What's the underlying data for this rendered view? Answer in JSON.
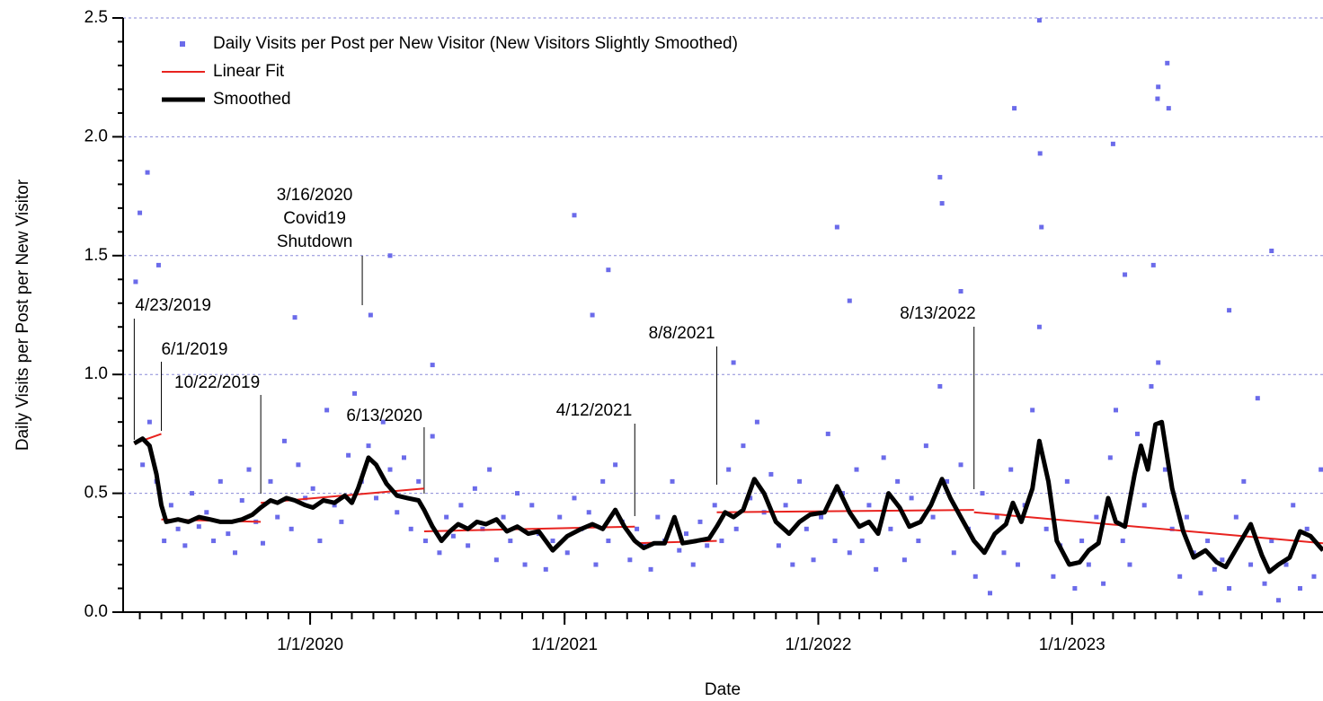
{
  "chart_data": {
    "type": "scatter",
    "x_label": "Date",
    "y_label": "Daily Visits per Post per New Visitor",
    "xlim": [
      "2019-04-07",
      "2023-12-28"
    ],
    "ylim": [
      0,
      2.5
    ],
    "xticks": [
      {
        "value": "2020-01-01",
        "label": "1/1/2020"
      },
      {
        "value": "2021-01-01",
        "label": "1/1/2021"
      },
      {
        "value": "2022-01-01",
        "label": "1/1/2022"
      },
      {
        "value": "2023-01-01",
        "label": "1/1/2023"
      }
    ],
    "yticks": [
      {
        "value": 0,
        "label": "0.0"
      },
      0.5,
      {
        "value": 1,
        "label": "1.0"
      },
      1.5,
      {
        "value": 2,
        "label": "2.0"
      },
      2.5
    ],
    "grid": true,
    "legend": "upper left",
    "series": [
      {
        "name": "Daily Visits per Post per New Visitor (New Visitors Slightly Smoothed)",
        "type": "scatter",
        "color": "#6b6bea",
        "x": [
          "2019-04-25",
          "2019-05-01",
          "2019-05-12",
          "2019-05-28",
          "2019-12-10",
          "2020-03-28",
          "2020-04-25",
          "2020-06-25",
          "2021-01-15",
          "2021-02-10",
          "2021-03-05",
          "2021-09-01",
          "2022-01-28",
          "2022-02-15",
          "2022-06-25",
          "2022-06-28",
          "2022-07-25",
          "2022-10-10",
          "2022-11-15",
          "2022-11-16",
          "2022-11-18",
          "2023-03-01",
          "2023-03-18",
          "2023-04-28",
          "2023-05-04",
          "2023-05-05",
          "2023-05-18",
          "2023-05-20",
          "2023-08-15",
          "2023-10-15",
          "2019-05-05",
          "2019-05-15",
          "2019-05-25",
          "2019-06-05",
          "2019-06-15",
          "2019-06-25",
          "2019-07-05",
          "2019-07-15",
          "2019-07-25",
          "2019-08-05",
          "2019-08-15",
          "2019-08-25",
          "2019-09-05",
          "2019-09-15",
          "2019-09-25",
          "2019-10-05",
          "2019-10-15",
          "2019-10-25",
          "2019-11-05",
          "2019-11-15",
          "2019-11-25",
          "2019-12-05",
          "2019-12-15",
          "2019-12-25",
          "2020-01-05",
          "2020-01-15",
          "2020-01-25",
          "2020-02-05",
          "2020-02-15",
          "2020-02-25",
          "2020-03-05",
          "2020-03-15",
          "2020-03-25",
          "2020-04-05",
          "2020-04-15",
          "2020-04-25",
          "2020-05-05",
          "2020-05-15",
          "2020-05-25",
          "2020-06-05",
          "2020-06-15",
          "2020-06-25",
          "2020-07-05",
          "2020-07-15",
          "2020-07-25",
          "2020-08-05",
          "2020-08-15",
          "2020-08-25",
          "2020-09-05",
          "2020-09-15",
          "2020-09-25",
          "2020-10-05",
          "2020-10-15",
          "2020-10-25",
          "2020-11-05",
          "2020-11-15",
          "2020-11-25",
          "2020-12-05",
          "2020-12-15",
          "2020-12-25",
          "2021-01-05",
          "2021-01-15",
          "2021-01-25",
          "2021-02-05",
          "2021-02-15",
          "2021-02-25",
          "2021-03-05",
          "2021-03-15",
          "2021-03-25",
          "2021-04-05",
          "2021-04-15",
          "2021-04-25",
          "2021-05-05",
          "2021-05-15",
          "2021-05-25",
          "2021-06-05",
          "2021-06-15",
          "2021-06-25",
          "2021-07-05",
          "2021-07-15",
          "2021-07-25",
          "2021-08-05",
          "2021-08-15",
          "2021-08-25",
          "2021-09-05",
          "2021-09-15",
          "2021-09-25",
          "2021-10-05",
          "2021-10-15",
          "2021-10-25",
          "2021-11-05",
          "2021-11-15",
          "2021-11-25",
          "2021-12-05",
          "2021-12-15",
          "2021-12-25",
          "2022-01-05",
          "2022-01-15",
          "2022-01-25",
          "2022-02-05",
          "2022-02-15",
          "2022-02-25",
          "2022-03-05",
          "2022-03-15",
          "2022-03-25",
          "2022-04-05",
          "2022-04-15",
          "2022-04-25",
          "2022-05-05",
          "2022-05-15",
          "2022-05-25",
          "2022-06-05",
          "2022-06-15",
          "2022-06-25",
          "2022-07-05",
          "2022-07-15",
          "2022-07-25",
          "2022-08-05",
          "2022-08-15",
          "2022-08-25",
          "2022-09-05",
          "2022-09-15",
          "2022-09-25",
          "2022-10-05",
          "2022-10-15",
          "2022-10-25",
          "2022-11-05",
          "2022-11-15",
          "2022-11-25",
          "2022-12-05",
          "2022-12-15",
          "2022-12-25",
          "2023-01-05",
          "2023-01-15",
          "2023-01-25",
          "2023-02-05",
          "2023-02-15",
          "2023-02-25",
          "2023-03-05",
          "2023-03-15",
          "2023-03-25",
          "2023-04-05",
          "2023-04-15",
          "2023-04-25",
          "2023-05-05",
          "2023-05-15",
          "2023-05-25",
          "2023-06-05",
          "2023-06-15",
          "2023-06-25",
          "2023-07-05",
          "2023-07-15",
          "2023-07-25",
          "2023-08-05",
          "2023-08-15",
          "2023-08-25",
          "2023-09-05",
          "2023-09-15",
          "2023-09-25",
          "2023-10-05",
          "2023-10-15",
          "2023-10-25",
          "2023-11-05",
          "2023-11-15",
          "2023-11-25",
          "2023-12-05",
          "2023-12-15",
          "2023-12-25"
        ],
        "values": [
          1.39,
          1.68,
          1.85,
          1.46,
          1.24,
          1.25,
          1.5,
          1.04,
          1.67,
          1.25,
          1.44,
          1.05,
          1.62,
          1.31,
          1.83,
          1.72,
          1.35,
          2.12,
          2.49,
          1.93,
          1.62,
          1.97,
          1.42,
          1.46,
          2.16,
          2.21,
          2.31,
          2.12,
          1.27,
          1.52,
          0.62,
          0.8,
          0.55,
          0.3,
          0.45,
          0.35,
          0.28,
          0.5,
          0.36,
          0.42,
          0.3,
          0.55,
          0.33,
          0.25,
          0.47,
          0.6,
          0.38,
          0.29,
          0.55,
          0.4,
          0.72,
          0.35,
          0.62,
          0.48,
          0.52,
          0.3,
          0.85,
          0.45,
          0.38,
          0.66,
          0.92,
          0.55,
          0.7,
          0.48,
          0.8,
          0.6,
          0.42,
          0.65,
          0.35,
          0.55,
          0.3,
          0.74,
          0.25,
          0.4,
          0.32,
          0.45,
          0.28,
          0.52,
          0.35,
          0.6,
          0.22,
          0.4,
          0.3,
          0.5,
          0.2,
          0.45,
          0.33,
          0.18,
          0.3,
          0.4,
          0.25,
          0.48,
          0.35,
          0.42,
          0.2,
          0.55,
          0.3,
          0.62,
          0.38,
          0.22,
          0.35,
          0.28,
          0.18,
          0.4,
          0.3,
          0.55,
          0.26,
          0.33,
          0.2,
          0.38,
          0.28,
          0.45,
          0.3,
          0.6,
          0.35,
          0.7,
          0.48,
          0.8,
          0.42,
          0.58,
          0.28,
          0.45,
          0.2,
          0.55,
          0.35,
          0.22,
          0.4,
          0.75,
          0.3,
          0.5,
          0.25,
          0.6,
          0.3,
          0.45,
          0.18,
          0.65,
          0.35,
          0.55,
          0.22,
          0.48,
          0.3,
          0.7,
          0.4,
          0.95,
          0.55,
          0.25,
          0.62,
          0.35,
          0.15,
          0.5,
          0.08,
          0.4,
          0.25,
          0.6,
          0.2,
          0.45,
          0.85,
          1.2,
          0.35,
          0.15,
          0.28,
          0.55,
          0.1,
          0.3,
          0.2,
          0.4,
          0.12,
          0.65,
          0.85,
          0.3,
          0.2,
          0.75,
          0.45,
          0.95,
          1.05,
          0.6,
          0.35,
          0.15,
          0.4,
          0.25,
          0.08,
          0.3,
          0.18,
          0.22,
          0.1,
          0.4,
          0.55,
          0.2,
          0.9,
          0.12,
          0.3,
          0.05,
          0.2,
          0.45,
          0.1,
          0.35,
          0.15,
          0.6
        ]
      },
      {
        "name": "Linear Fit",
        "type": "line",
        "color": "#e8231f",
        "x": [
          "2019-04-23",
          "2019-06-01",
          "2019-06-01",
          "2019-06-01",
          "2019-10-22",
          "2019-10-22",
          "2019-10-22",
          "2020-06-13",
          "2020-06-13",
          "2020-06-13",
          "2021-04-12",
          "2021-04-12",
          "2021-04-12",
          "2021-08-08",
          "2021-08-08",
          "2021-08-08",
          "2022-08-13",
          "2022-08-13",
          "2022-08-13",
          "2023-12-28"
        ],
        "values": [
          0.71,
          0.75,
          null,
          0.39,
          0.38,
          null,
          0.46,
          0.52,
          null,
          0.34,
          0.36,
          null,
          0.29,
          0.3,
          null,
          0.42,
          0.43,
          null,
          0.42,
          0.29
        ]
      },
      {
        "name": "Smoothed",
        "type": "line",
        "color": "#000000",
        "x": [
          "2019-04-23",
          "2019-05-05",
          "2019-05-15",
          "2019-05-25",
          "2019-06-01",
          "2019-06-08",
          "2019-06-25",
          "2019-07-10",
          "2019-07-25",
          "2019-08-10",
          "2019-08-25",
          "2019-09-10",
          "2019-09-25",
          "2019-10-10",
          "2019-10-22",
          "2019-11-05",
          "2019-11-15",
          "2019-11-28",
          "2019-12-10",
          "2019-12-25",
          "2020-01-05",
          "2020-01-20",
          "2020-02-05",
          "2020-02-20",
          "2020-03-01",
          "2020-03-10",
          "2020-03-25",
          "2020-04-05",
          "2020-04-20",
          "2020-05-05",
          "2020-05-20",
          "2020-06-05",
          "2020-06-13",
          "2020-06-25",
          "2020-07-08",
          "2020-07-20",
          "2020-08-01",
          "2020-08-15",
          "2020-08-28",
          "2020-09-10",
          "2020-09-25",
          "2020-10-10",
          "2020-10-25",
          "2020-11-10",
          "2020-11-25",
          "2020-12-15",
          "2021-01-05",
          "2021-01-25",
          "2021-02-10",
          "2021-02-25",
          "2021-03-15",
          "2021-03-28",
          "2021-04-12",
          "2021-04-25",
          "2021-05-10",
          "2021-05-25",
          "2021-06-08",
          "2021-06-20",
          "2021-07-10",
          "2021-07-28",
          "2021-08-08",
          "2021-08-20",
          "2021-09-01",
          "2021-09-15",
          "2021-10-01",
          "2021-10-15",
          "2021-11-01",
          "2021-11-20",
          "2021-12-05",
          "2021-12-20",
          "2022-01-10",
          "2022-01-28",
          "2022-02-15",
          "2022-03-01",
          "2022-03-15",
          "2022-03-28",
          "2022-04-12",
          "2022-04-28",
          "2022-05-12",
          "2022-05-28",
          "2022-06-12",
          "2022-06-28",
          "2022-07-10",
          "2022-07-25",
          "2022-08-13",
          "2022-08-28",
          "2022-09-12",
          "2022-09-28",
          "2022-10-08",
          "2022-10-20",
          "2022-11-05",
          "2022-11-15",
          "2022-11-28",
          "2022-12-10",
          "2022-12-28",
          "2023-01-12",
          "2023-01-25",
          "2023-02-08",
          "2023-02-22",
          "2023-03-05",
          "2023-03-18",
          "2023-04-01",
          "2023-04-10",
          "2023-04-20",
          "2023-05-01",
          "2023-05-10",
          "2023-05-25",
          "2023-06-10",
          "2023-06-25",
          "2023-07-12",
          "2023-07-28",
          "2023-08-10",
          "2023-08-28",
          "2023-09-15",
          "2023-10-01",
          "2023-10-12",
          "2023-10-25",
          "2023-11-10",
          "2023-11-25",
          "2023-12-10",
          "2023-12-28"
        ],
        "values": [
          0.71,
          0.73,
          0.7,
          0.58,
          0.45,
          0.38,
          0.39,
          0.38,
          0.4,
          0.39,
          0.38,
          0.38,
          0.39,
          0.41,
          0.44,
          0.47,
          0.46,
          0.48,
          0.47,
          0.45,
          0.44,
          0.47,
          0.46,
          0.49,
          0.46,
          0.52,
          0.65,
          0.62,
          0.54,
          0.49,
          0.48,
          0.47,
          0.43,
          0.36,
          0.3,
          0.34,
          0.37,
          0.35,
          0.38,
          0.37,
          0.39,
          0.34,
          0.36,
          0.33,
          0.34,
          0.26,
          0.32,
          0.35,
          0.37,
          0.35,
          0.43,
          0.36,
          0.3,
          0.27,
          0.29,
          0.29,
          0.4,
          0.29,
          0.3,
          0.31,
          0.36,
          0.42,
          0.4,
          0.43,
          0.56,
          0.5,
          0.38,
          0.33,
          0.38,
          0.41,
          0.42,
          0.53,
          0.42,
          0.36,
          0.38,
          0.33,
          0.5,
          0.44,
          0.36,
          0.38,
          0.45,
          0.56,
          0.48,
          0.4,
          0.3,
          0.25,
          0.33,
          0.37,
          0.46,
          0.38,
          0.52,
          0.72,
          0.55,
          0.3,
          0.2,
          0.21,
          0.26,
          0.29,
          0.48,
          0.38,
          0.36,
          0.58,
          0.7,
          0.6,
          0.79,
          0.8,
          0.52,
          0.34,
          0.23,
          0.26,
          0.21,
          0.19,
          0.28,
          0.37,
          0.24,
          0.17,
          0.2,
          0.23,
          0.34,
          0.32,
          0.26
        ]
      }
    ],
    "annotations": [
      {
        "x": "2019-04-23",
        "label": [
          "4/23/2019"
        ]
      },
      {
        "x": "2019-06-01",
        "label": [
          "6/1/2019"
        ]
      },
      {
        "x": "2019-10-22",
        "label": [
          "10/22/2019"
        ]
      },
      {
        "x": "2020-03-16",
        "label": [
          "3/16/2020",
          "Covid19",
          "Shutdown"
        ]
      },
      {
        "x": "2020-06-13",
        "label": [
          "6/13/2020"
        ]
      },
      {
        "x": "2021-04-12",
        "label": [
          "4/12/2021"
        ]
      },
      {
        "x": "2021-08-08",
        "label": [
          "8/8/2021"
        ]
      },
      {
        "x": "2022-08-13",
        "label": [
          "8/13/2022"
        ]
      }
    ]
  }
}
